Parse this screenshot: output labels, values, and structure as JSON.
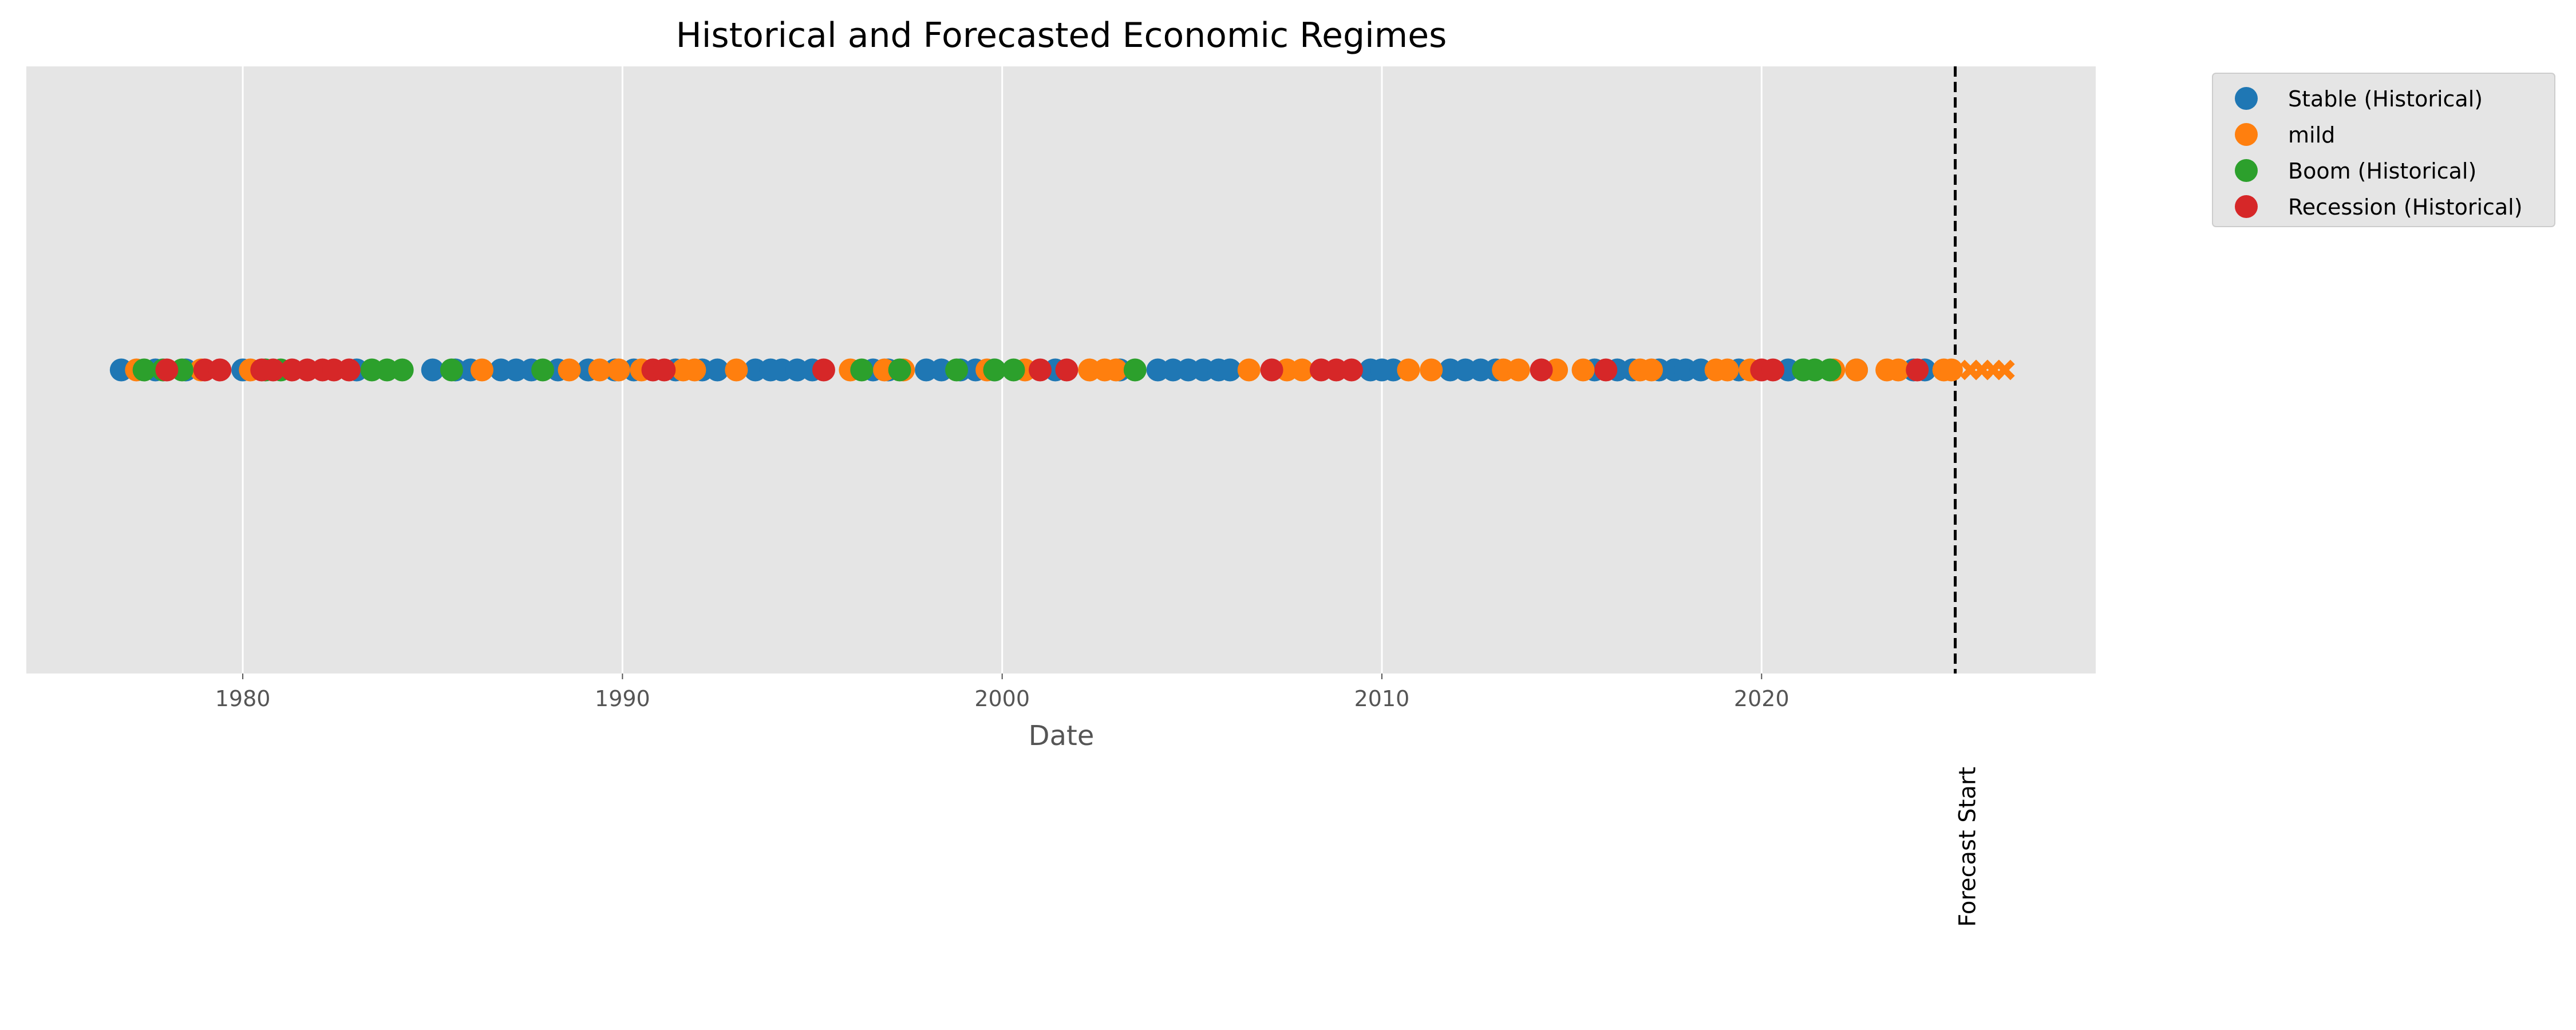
{
  "chart_data": {
    "type": "scatter",
    "title": "Historical and Forecasted Economic Regimes",
    "xlabel": "Date",
    "ylabel": "",
    "x_unit": "year",
    "xlim": [
      1974.3,
      2028.8
    ],
    "ylim": [
      -1,
      1
    ],
    "x_ticks": [
      1980,
      1990,
      2000,
      2010,
      2020
    ],
    "x_tick_labels": [
      "1980",
      "1990",
      "2000",
      "2010",
      "2020"
    ],
    "grid": true,
    "legend_position": "outside-top-right",
    "colors": {
      "stable": "#1f77b4",
      "mild": "#ff7f0e",
      "boom": "#2ca02c",
      "recession": "#d62728",
      "plot_background": "#e5e5e5",
      "grid": "#ffffff"
    },
    "series": [
      {
        "name": "Stable (Historical)",
        "color": "#1f77b4",
        "marker": "circle",
        "x": [
          1976.8,
          1977.7,
          1978.5,
          1980.0,
          1983.0,
          1985.0,
          1985.6,
          1986.0,
          1986.8,
          1987.2,
          1987.6,
          1988.3,
          1989.1,
          1989.8,
          1990.3,
          1991.4,
          1992.1,
          1992.5,
          1993.5,
          1993.9,
          1994.2,
          1994.6,
          1995.0,
          1996.6,
          1997.0,
          1998.0,
          1998.4,
          1998.9,
          1999.3,
          1999.8,
          2001.4,
          2003.1,
          2004.1,
          2004.5,
          2004.9,
          2005.3,
          2005.7,
          2006.0,
          2009.7,
          2010.0,
          2010.3,
          2011.8,
          2012.2,
          2012.6,
          2013.0,
          2015.6,
          2016.2,
          2016.6,
          2017.3,
          2017.7,
          2018.0,
          2018.4,
          2019.4,
          2020.7,
          2021.1,
          2022.5,
          2024.0,
          2024.3
        ],
        "y": [
          0,
          0,
          0,
          0,
          0,
          0,
          0,
          0,
          0,
          0,
          0,
          0,
          0,
          0,
          0,
          0,
          0,
          0,
          0,
          0,
          0,
          0,
          0,
          0,
          0,
          0,
          0,
          0,
          0,
          0,
          0,
          0,
          0,
          0,
          0,
          0,
          0,
          0,
          0,
          0,
          0,
          0,
          0,
          0,
          0,
          0,
          0,
          0,
          0,
          0,
          0,
          0,
          0,
          0,
          0,
          0,
          0,
          0
        ]
      },
      {
        "name": "mild",
        "color": "#ff7f0e",
        "marker": "circle",
        "x": [
          1977.2,
          1978.9,
          1980.2,
          1986.3,
          1988.6,
          1989.4,
          1989.9,
          1990.5,
          1991.6,
          1991.9,
          1993.0,
          1996.0,
          1996.9,
          1997.4,
          1999.6,
          2000.6,
          2002.3,
          2002.7,
          2003.0,
          2006.5,
          2007.5,
          2007.9,
          2010.7,
          2011.3,
          2013.2,
          2013.6,
          2014.6,
          2015.3,
          2016.8,
          2017.1,
          2018.8,
          2019.1,
          2019.7,
          2021.9,
          2022.5,
          2023.3,
          2023.6,
          2024.8,
          2025.0
        ],
        "y": [
          0,
          0,
          0,
          0,
          0,
          0,
          0,
          0,
          0,
          0,
          0,
          0,
          0,
          0,
          0,
          0,
          0,
          0,
          0,
          0,
          0,
          0,
          0,
          0,
          0,
          0,
          0,
          0,
          0,
          0,
          0,
          0,
          0,
          0,
          0,
          0,
          0,
          0,
          0
        ]
      },
      {
        "name": "Boom (Historical)",
        "color": "#2ca02c",
        "marker": "circle",
        "x": [
          1977.4,
          1977.9,
          1978.4,
          1980.6,
          1981.0,
          1983.4,
          1983.8,
          1984.2,
          1985.5,
          1987.9,
          1996.3,
          1997.3,
          1998.8,
          1999.8,
          2000.3,
          2003.5,
          2021.1,
          2021.4,
          2021.8
        ],
        "y": [
          0,
          0,
          0,
          0,
          0,
          0,
          0,
          0,
          0,
          0,
          0,
          0,
          0,
          0,
          0,
          0,
          0,
          0,
          0
        ]
      },
      {
        "name": "Recession (Historical)",
        "color": "#d62728",
        "marker": "circle",
        "x": [
          1978.0,
          1979.0,
          1979.4,
          1980.5,
          1980.8,
          1981.3,
          1981.7,
          1982.1,
          1982.4,
          1982.8,
          1990.8,
          1991.1,
          1995.3,
          2001.0,
          2001.7,
          2007.1,
          2008.4,
          2008.8,
          2009.2,
          2014.2,
          2015.9,
          2020.0,
          2020.3,
          2024.1
        ],
        "y": [
          0,
          0,
          0,
          0,
          0,
          0,
          0,
          0,
          0,
          0,
          0,
          0,
          0,
          0,
          0,
          0,
          0,
          0,
          0,
          0,
          0,
          0,
          0,
          0
        ]
      },
      {
        "name": "",
        "color": "#ff7f0e",
        "marker": "x",
        "x": [
          2025.5,
          2025.8,
          2026.1,
          2026.4
        ],
        "y": [
          0,
          0,
          0,
          0
        ]
      }
    ],
    "forecast_line": {
      "x": 2025.1,
      "label": "Forecast Start"
    }
  }
}
